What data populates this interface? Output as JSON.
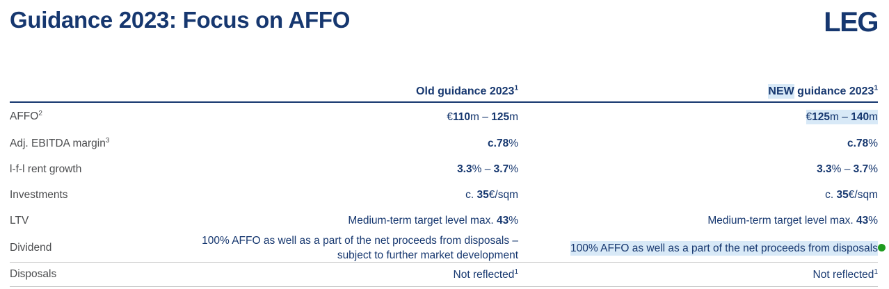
{
  "title": "Guidance 2023: Focus on AFFO",
  "logo_text": "LEG",
  "colors": {
    "brand_blue": "#16376f",
    "label_gray": "#4b4c4e",
    "highlight_blue": "#d8e9f7",
    "green_dot": "#1f9b1f",
    "rule_gray": "#c9c9c9"
  },
  "marker": {
    "name": "green-dot",
    "color": "#1f9b1f"
  },
  "table": {
    "header": {
      "old": [
        {
          "t": "Old guidance 2023",
          "b": true
        },
        {
          "t": "1",
          "b": true,
          "sup": true
        }
      ],
      "new": [
        {
          "t": "NEW",
          "b": true,
          "hl": true
        },
        {
          "t": " guidance 2023",
          "b": true
        },
        {
          "t": "1",
          "b": true,
          "sup": true
        }
      ]
    },
    "rows": [
      {
        "label": [
          {
            "t": "AFFO"
          },
          {
            "t": "2",
            "sup": true
          }
        ],
        "old": [
          {
            "t": "€"
          },
          {
            "t": "110",
            "b": true
          },
          {
            "t": "m – "
          },
          {
            "t": "125",
            "b": true
          },
          {
            "t": "m"
          }
        ],
        "new": [
          {
            "t": "€",
            "hl": true
          },
          {
            "t": "125",
            "b": true,
            "hl": true
          },
          {
            "t": "m – ",
            "hl": true
          },
          {
            "t": "140",
            "b": true,
            "hl": true
          },
          {
            "t": "m",
            "hl": true
          }
        ]
      },
      {
        "label": [
          {
            "t": "Adj. EBITDA margin"
          },
          {
            "t": "3",
            "sup": true
          }
        ],
        "old": [
          {
            "t": "c.78",
            "b": true
          },
          {
            "t": "%"
          }
        ],
        "new": [
          {
            "t": "c.78",
            "b": true
          },
          {
            "t": "%"
          }
        ]
      },
      {
        "label": [
          {
            "t": "l-f-l rent growth"
          }
        ],
        "old": [
          {
            "t": "3.3",
            "b": true
          },
          {
            "t": "% – "
          },
          {
            "t": "3.7",
            "b": true
          },
          {
            "t": "%"
          }
        ],
        "new": [
          {
            "t": "3.3",
            "b": true
          },
          {
            "t": "% – "
          },
          {
            "t": "3.7",
            "b": true
          },
          {
            "t": "%"
          }
        ]
      },
      {
        "label": [
          {
            "t": "Investments"
          }
        ],
        "old": [
          {
            "t": "c. "
          },
          {
            "t": "35",
            "b": true
          },
          {
            "t": "€/sqm"
          }
        ],
        "new": [
          {
            "t": "c. "
          },
          {
            "t": "35",
            "b": true
          },
          {
            "t": "€/sqm"
          }
        ]
      },
      {
        "label": [
          {
            "t": "LTV"
          }
        ],
        "old": [
          {
            "t": "Medium-term target level max. "
          },
          {
            "t": "43",
            "b": true
          },
          {
            "t": "%"
          }
        ],
        "new": [
          {
            "t": "Medium-term target level max. "
          },
          {
            "t": "43",
            "b": true
          },
          {
            "t": "%"
          }
        ]
      },
      {
        "label": [
          {
            "t": "Dividend"
          }
        ],
        "old": [
          {
            "t": "100% AFFO as well as a part of the net proceeds from disposals –"
          },
          {
            "br": true
          },
          {
            "t": "subject to further market development"
          }
        ],
        "new": [
          {
            "t": "100% AFFO as well as a part of the net proceeds from disposals",
            "hl": true
          }
        ]
      },
      {
        "label": [
          {
            "t": "Disposals"
          }
        ],
        "old": [
          {
            "t": "Not reflected"
          },
          {
            "t": "1",
            "sup": true
          }
        ],
        "new": [
          {
            "t": "Not reflected"
          },
          {
            "t": "1",
            "sup": true
          }
        ]
      }
    ]
  }
}
